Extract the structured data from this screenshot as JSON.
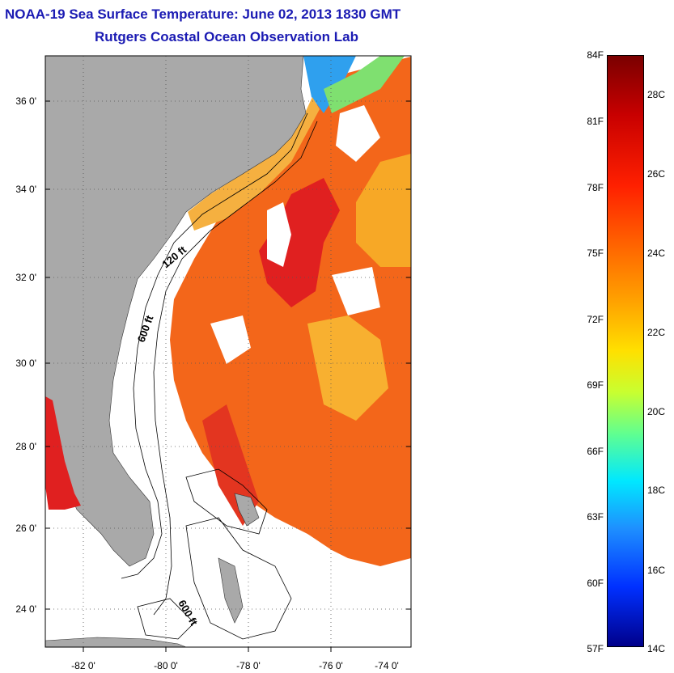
{
  "title_line1": "NOAA-19 Sea Surface Temperature:  June 02, 2013 1830 GMT",
  "title_line2": "Rutgers Coastal Ocean Observation Lab",
  "lat_labels": [
    "36 0'",
    "34 0'",
    "32 0'",
    "30 0'",
    "28 0'",
    "26 0'",
    "24 0'"
  ],
  "lon_labels": [
    "-82 0'",
    "-80 0'",
    "-78 0'",
    "-76 0'",
    "-74 0'"
  ],
  "contour_labels": [
    "120 ft",
    "600 ft",
    "600 ft"
  ],
  "colorbar_f": [
    "84F",
    "81F",
    "78F",
    "75F",
    "72F",
    "69F",
    "66F",
    "63F",
    "60F",
    "57F"
  ],
  "colorbar_c": [
    "28C",
    "26C",
    "24C",
    "22C",
    "20C",
    "18C",
    "16C",
    "14C"
  ],
  "colors": {
    "land": "#a9a9a9",
    "water_nodata": "#ffffff",
    "sst_warm": "#f06010",
    "sst_hot": "#e01818",
    "sst_mid": "#f8a020",
    "sst_cool": "#30a0f0",
    "title": "#1b1bb3"
  }
}
